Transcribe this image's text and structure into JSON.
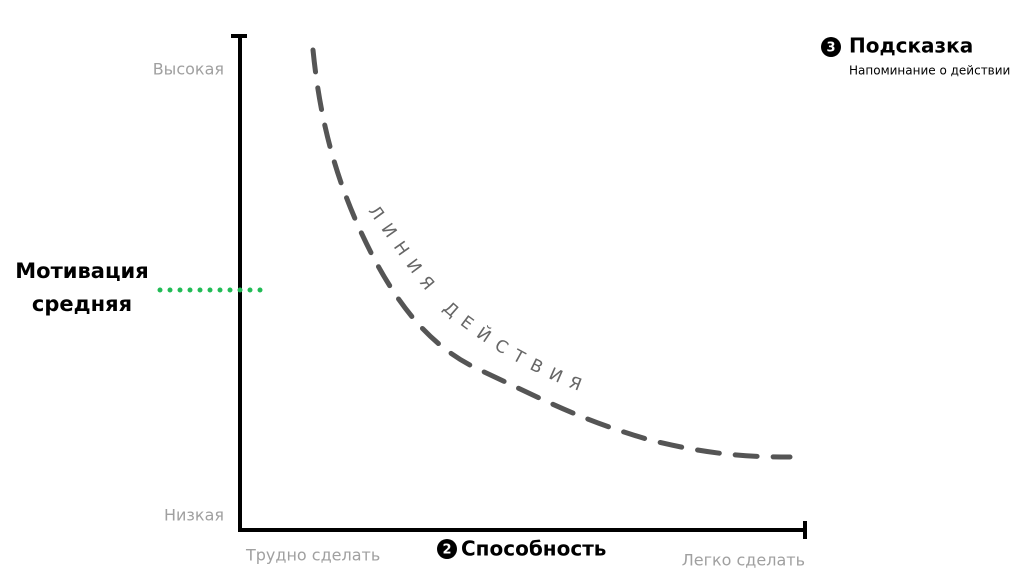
{
  "y_axis": {
    "high": "Высокая",
    "low": "Низкая"
  },
  "x_axis": {
    "hard": "Трудно сделать",
    "easy": "Легко сделать",
    "number": "2",
    "title": "Способность"
  },
  "motivation": {
    "lines": [
      "Мотивация",
      "средняя"
    ]
  },
  "prompt": {
    "number": "3",
    "title": "Подсказка",
    "subtitle": "Напоминание о действии"
  },
  "curve": {
    "label": "ЛИНИЯ ДЕЙСТВИЯ"
  }
}
